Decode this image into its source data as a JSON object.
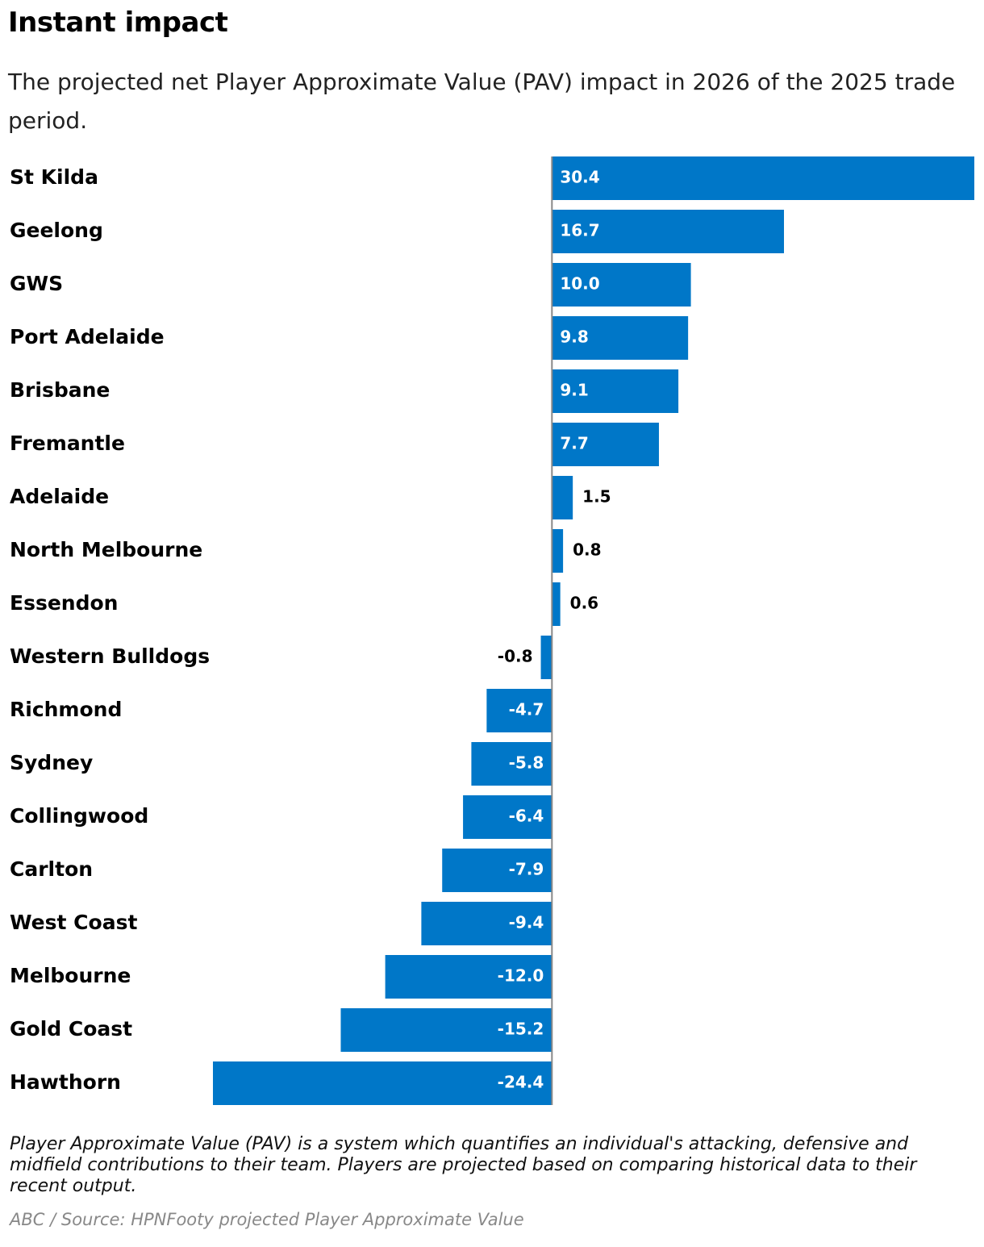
{
  "chart_data": {
    "type": "bar",
    "orientation": "horizontal",
    "title": "Instant impact",
    "subtitle": "The projected net Player Approximate Value (PAV) impact in 2026 of the 2025 trade period.",
    "note": "Player Approximate Value (PAV) is a system which quantifies an individual's attacking, defensive and midfield contributions to their team. Players are projected based on comparing historical data to their recent output.",
    "source": "ABC / Source: HPNFooty projected Player Approximate Value",
    "categories": [
      "St Kilda",
      "Geelong",
      "GWS",
      "Port Adelaide",
      "Brisbane",
      "Fremantle",
      "Adelaide",
      "North Melbourne",
      "Essendon",
      "Western Bulldogs",
      "Richmond",
      "Sydney",
      "Collingwood",
      "Carlton",
      "West Coast",
      "Melbourne",
      "Gold Coast",
      "Hawthorn"
    ],
    "values": [
      30.4,
      16.7,
      10.0,
      9.8,
      9.1,
      7.7,
      1.5,
      0.8,
      0.6,
      -0.8,
      -4.7,
      -5.8,
      -6.4,
      -7.9,
      -9.4,
      -12.0,
      -15.2,
      -24.4
    ],
    "value_labels": [
      "30.4",
      "16.7",
      "10.0",
      "9.8",
      "9.1",
      "7.7",
      "1.5",
      "0.8",
      "0.6",
      "-0.8",
      "-4.7",
      "-5.8",
      "-6.4",
      "-7.9",
      "-9.4",
      "-12.0",
      "-15.2",
      "-24.4"
    ],
    "color": "#0077c8"
  }
}
